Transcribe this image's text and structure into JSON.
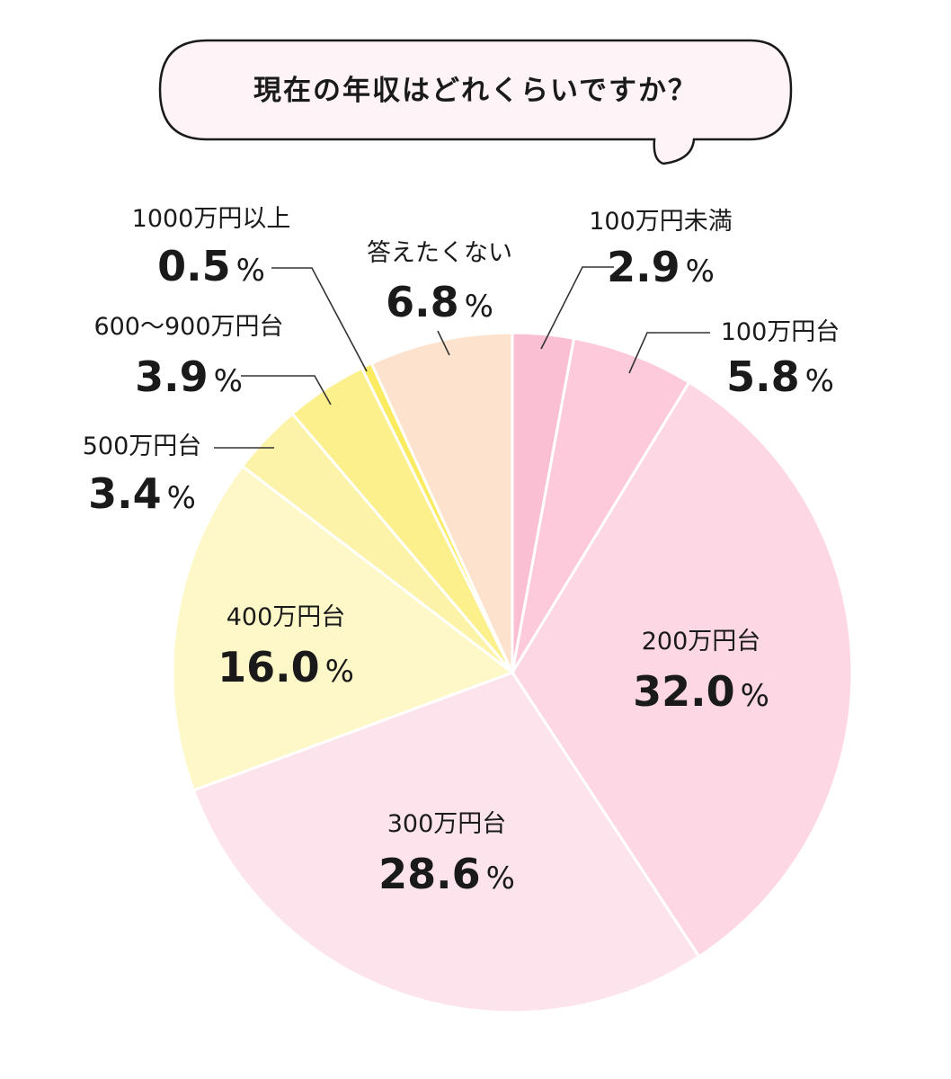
{
  "chart_data": {
    "type": "pie",
    "title": "現在の年収はどれくらいですか？",
    "unit": "%",
    "start_angle_deg": 0,
    "direction": "clockwise",
    "slices": [
      {
        "label": "100万円未満",
        "value": 2.9,
        "display": "2.9",
        "color": "#fbbfd3"
      },
      {
        "label": "100万円台",
        "value": 5.8,
        "display": "5.8",
        "color": "#fccadb"
      },
      {
        "label": "200万円台",
        "value": 32.0,
        "display": "32.0",
        "color": "#fdd7e3"
      },
      {
        "label": "300万円台",
        "value": 28.6,
        "display": "28.6",
        "color": "#fde4ec"
      },
      {
        "label": "400万円台",
        "value": 16.0,
        "display": "16.0",
        "color": "#fef8c8"
      },
      {
        "label": "500万円台",
        "value": 3.4,
        "display": "3.4",
        "color": "#fdf3a8"
      },
      {
        "label": "600～900万円台",
        "value": 3.9,
        "display": "3.9",
        "color": "#fcf08c"
      },
      {
        "label": "1000万円以上",
        "value": 0.5,
        "display": "0.5",
        "color": "#faeb60"
      },
      {
        "label": "答えたくない",
        "value": 6.8,
        "display": "6.8",
        "color": "#fde3cd"
      }
    ]
  }
}
